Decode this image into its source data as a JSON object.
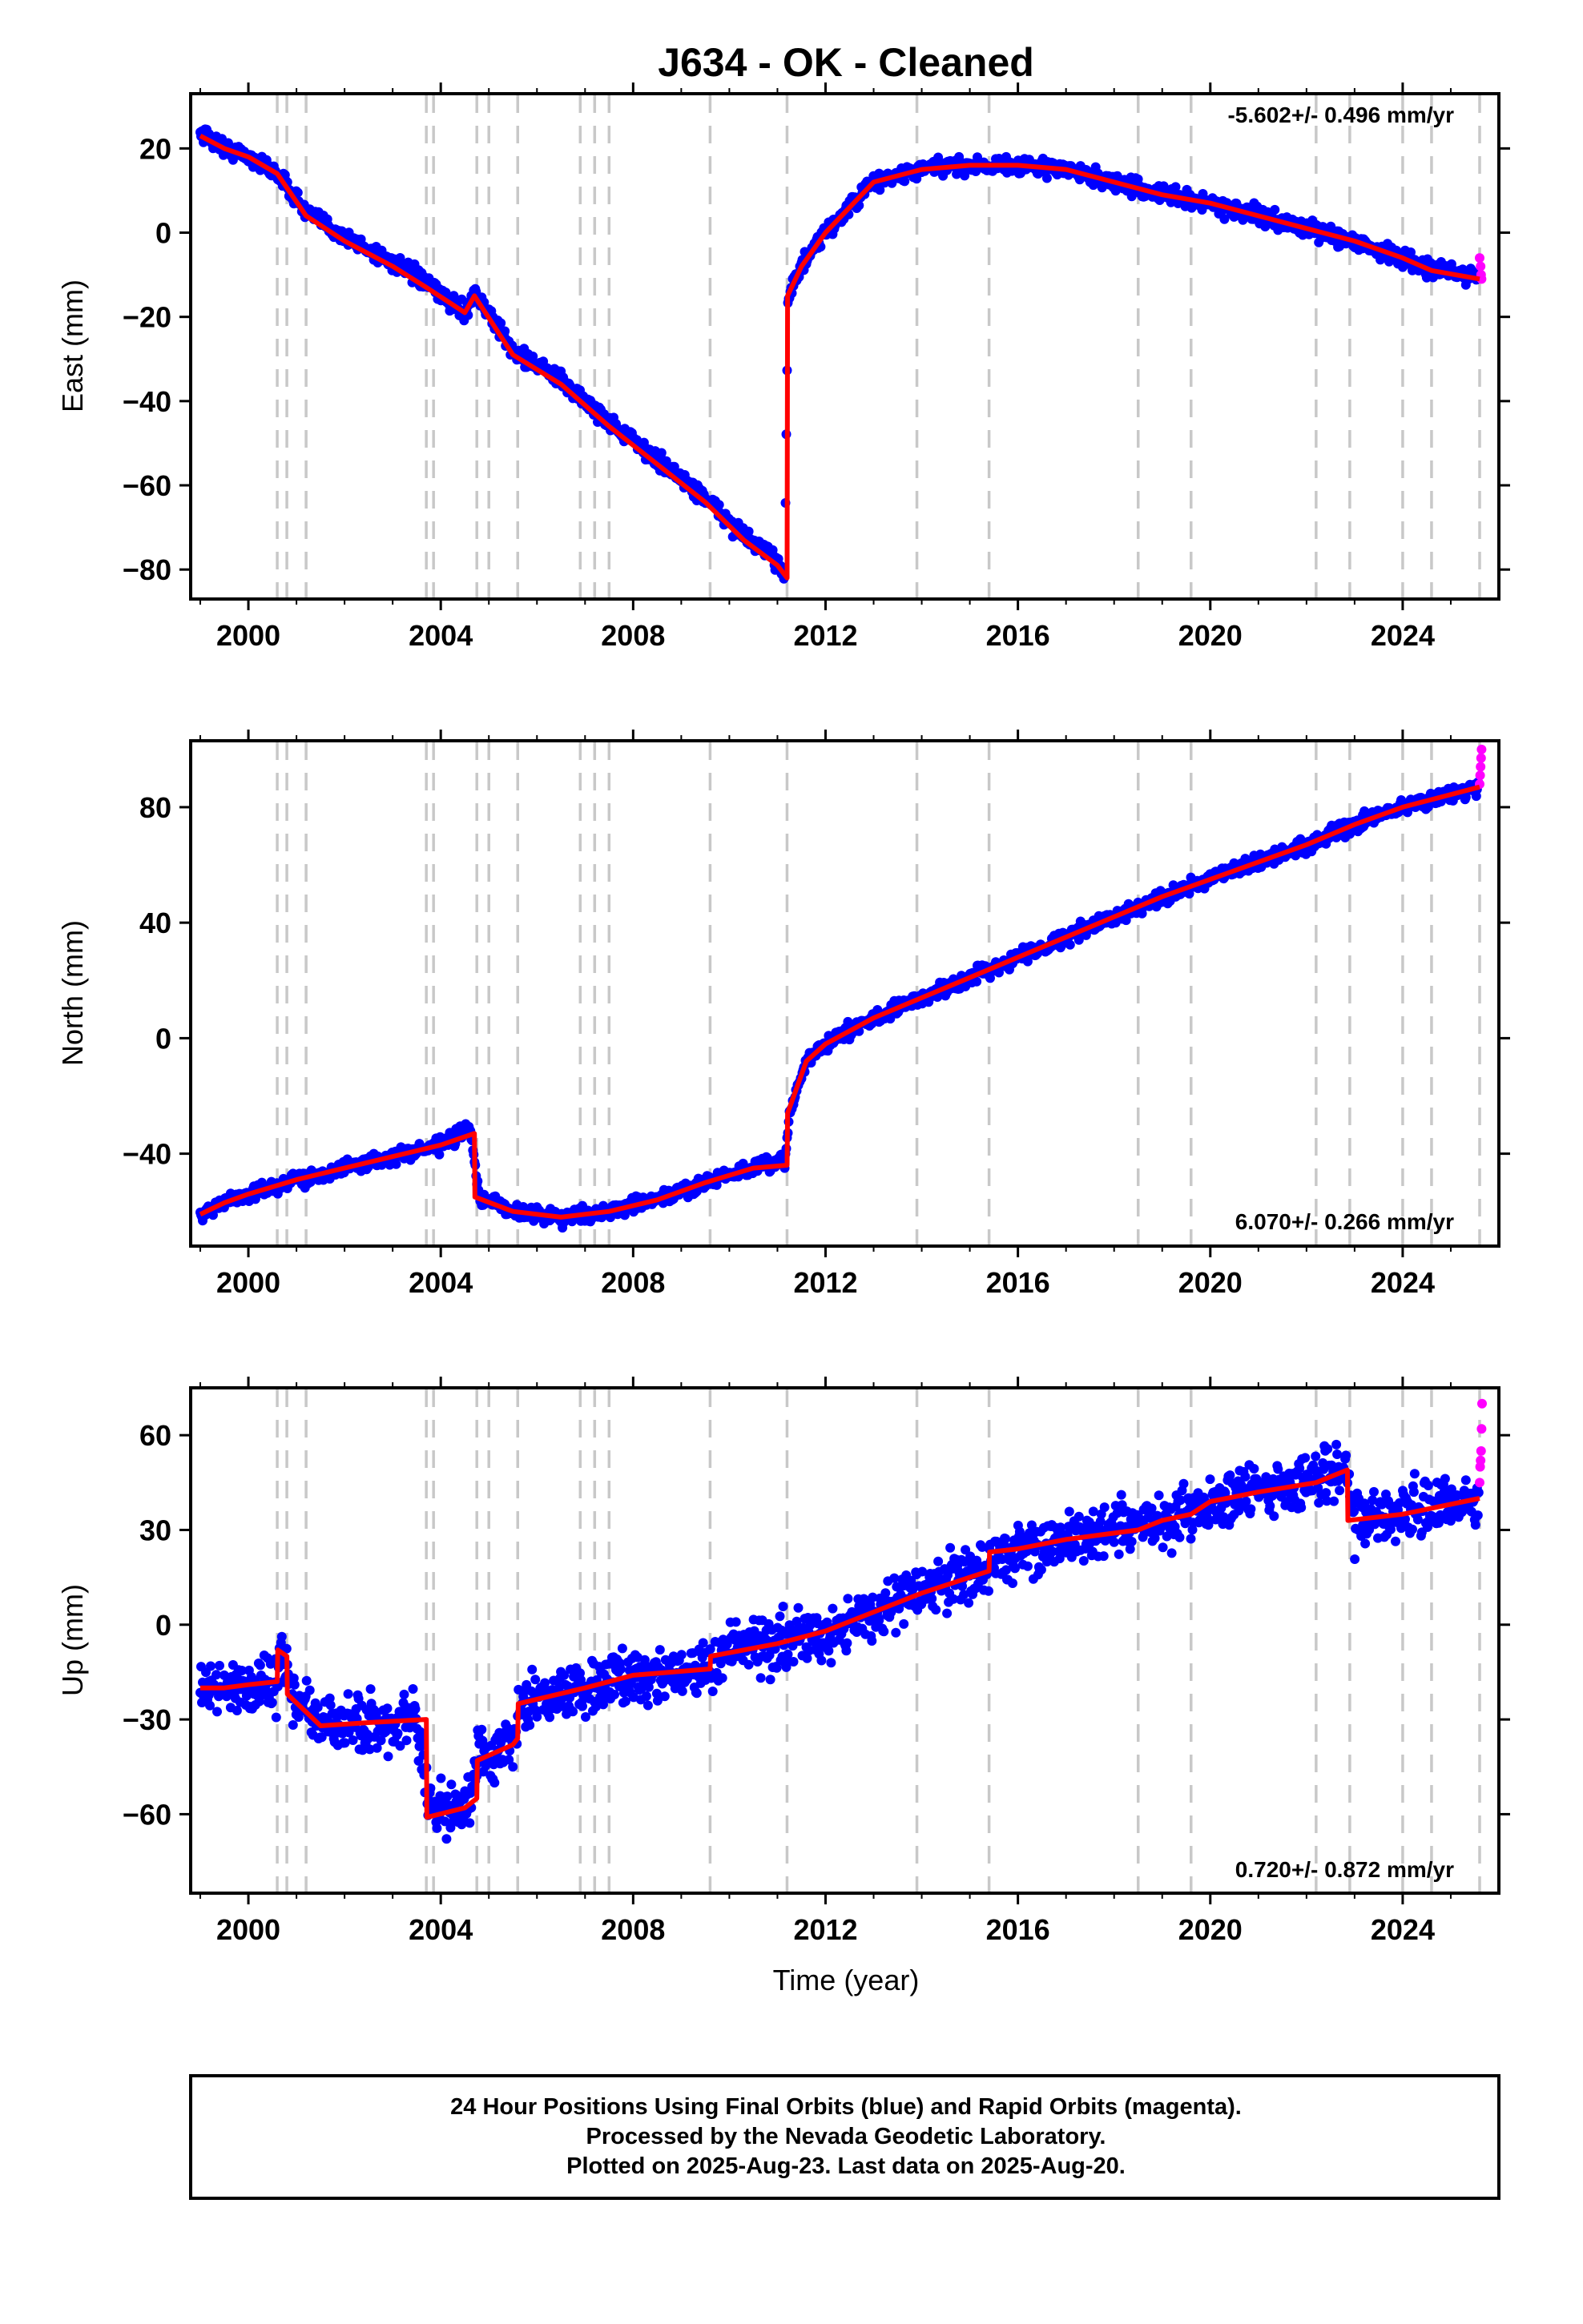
{
  "title": "J634  - OK - Cleaned",
  "xlabel": "Time (year)",
  "colors": {
    "final": "#0000ff",
    "rapid": "#ff00ff",
    "model": "#ff0000",
    "steps": "#c8c8c8",
    "frame": "#000000"
  },
  "footer": {
    "line1": "24 Hour Positions Using Final Orbits (blue) and Rapid Orbits (magenta).",
    "line2": "Processed by the Nevada Geodetic Laboratory.",
    "line3": "Plotted on 2025-Aug-23. Last data on 2025-Aug-20."
  },
  "chart_data": [
    {
      "type": "scatter",
      "component": "east",
      "ylabel": "East (mm)",
      "rate_text": "-5.602+/- 0.496 mm/yr",
      "xlim": [
        1998.8,
        2026.0
      ],
      "ylim": [
        -87,
        33
      ],
      "x_ticks": [
        2000,
        2004,
        2008,
        2012,
        2016,
        2020,
        2024
      ],
      "y_ticks": [
        -80,
        -60,
        -40,
        -20,
        0,
        20
      ],
      "step_epochs": [
        2000.6,
        2000.8,
        2001.2,
        2003.7,
        2003.85,
        2004.75,
        2005.0,
        2005.6,
        2006.9,
        2007.2,
        2007.5,
        2009.6,
        2011.2,
        2013.9,
        2015.4,
        2018.5,
        2019.6,
        2022.2,
        2022.9,
        2024.0,
        2024.6,
        2025.6
      ],
      "series": [
        {
          "name": "Final Orbits",
          "x": [
            1999.0,
            1999.5,
            2000.0,
            2000.6,
            2001.2,
            2002.0,
            2003.0,
            2003.7,
            2004.5,
            2004.7,
            2005.5,
            2006.5,
            2007.5,
            2008.5,
            2009.5,
            2010.3,
            2011.0,
            2011.15,
            2011.22,
            2011.5,
            2012.0,
            2012.5,
            2013.0,
            2014.0,
            2015.0,
            2016.0,
            2017.0,
            2018.0,
            2019.0,
            2020.0,
            2021.0,
            2022.0,
            2023.0,
            2024.0,
            2024.6,
            2025.58
          ],
          "y": [
            24,
            20,
            18,
            14,
            5,
            -1,
            -7,
            -12,
            -19,
            -14,
            -28,
            -35,
            -45,
            -54,
            -63,
            -72,
            -78,
            -81,
            -15,
            -8,
            0,
            6,
            12,
            15,
            16,
            16,
            15,
            12,
            9,
            7,
            4,
            1,
            -2,
            -6,
            -9,
            -10
          ]
        },
        {
          "name": "Rapid Orbits",
          "x": [
            2025.6,
            2025.62,
            2025.63,
            2025.64
          ],
          "y": [
            -6,
            -8,
            -10,
            -11
          ]
        },
        {
          "name": "Model",
          "x": [
            1999.0,
            1999.5,
            2000.0,
            2000.6,
            2001.2,
            2002.0,
            2003.0,
            2003.7,
            2004.5,
            2004.7,
            2005.5,
            2006.5,
            2007.5,
            2008.5,
            2009.5,
            2010.3,
            2011.0,
            2011.2,
            2011.21,
            2011.5,
            2012.0,
            2012.5,
            2013.0,
            2014.0,
            2015.0,
            2016.0,
            2017.0,
            2018.0,
            2019.0,
            2020.0,
            2021.0,
            2022.0,
            2023.0,
            2024.0,
            2024.6,
            2025.6
          ],
          "y": [
            23,
            20,
            18,
            14,
            4,
            -2,
            -8,
            -13,
            -19,
            -15,
            -29,
            -36,
            -46,
            -55,
            -64,
            -73,
            -79,
            -82,
            -15,
            -8,
            0,
            6,
            12,
            15,
            16,
            16,
            15,
            12,
            9,
            7,
            4,
            1,
            -2,
            -6,
            -9,
            -11
          ]
        }
      ]
    },
    {
      "type": "scatter",
      "component": "north",
      "ylabel": "North (mm)",
      "rate_text": "6.070+/- 0.266 mm/yr",
      "xlim": [
        1998.8,
        2026.0
      ],
      "ylim": [
        -72,
        103
      ],
      "x_ticks": [
        2000,
        2004,
        2008,
        2012,
        2016,
        2020,
        2024
      ],
      "y_ticks": [
        -40,
        0,
        40,
        80
      ],
      "step_epochs": [
        2000.6,
        2000.8,
        2001.2,
        2003.7,
        2003.85,
        2004.75,
        2005.0,
        2005.6,
        2006.9,
        2007.2,
        2007.5,
        2009.6,
        2011.2,
        2013.9,
        2015.4,
        2018.5,
        2019.6,
        2022.2,
        2022.9,
        2024.0,
        2024.6,
        2025.6
      ],
      "series": [
        {
          "name": "Final Orbits",
          "x": [
            1999.0,
            1999.5,
            2000.0,
            2001.0,
            2002.0,
            2003.0,
            2004.0,
            2004.6,
            2004.8,
            2005.5,
            2006.5,
            2007.5,
            2008.5,
            2009.5,
            2010.5,
            2011.15,
            2011.25,
            2011.6,
            2012.0,
            2013.0,
            2014.0,
            2015.0,
            2016.0,
            2017.0,
            2018.0,
            2019.0,
            2020.0,
            2021.0,
            2022.0,
            2023.0,
            2024.0,
            2025.58
          ],
          "y": [
            -61,
            -57,
            -54,
            -49,
            -45,
            -41,
            -37,
            -31,
            -55,
            -60,
            -62,
            -60,
            -56,
            -50,
            -45,
            -43,
            -26,
            -8,
            -2,
            7,
            14,
            21,
            28,
            35,
            42,
            49,
            55,
            61,
            67,
            74,
            80,
            87
          ]
        },
        {
          "name": "Rapid Orbits",
          "x": [
            2025.6,
            2025.61,
            2025.62,
            2025.63,
            2025.64
          ],
          "y": [
            88,
            91,
            94,
            97,
            100
          ]
        },
        {
          "name": "Model",
          "x": [
            1999.0,
            1999.5,
            2000.0,
            2001.0,
            2002.0,
            2003.0,
            2004.0,
            2004.7,
            2004.71,
            2005.5,
            2006.5,
            2007.5,
            2008.5,
            2009.5,
            2010.5,
            2011.2,
            2011.21,
            2011.6,
            2012.0,
            2013.0,
            2014.0,
            2015.0,
            2016.0,
            2017.0,
            2018.0,
            2019.0,
            2020.0,
            2021.0,
            2022.0,
            2023.0,
            2024.0,
            2025.6
          ],
          "y": [
            -61,
            -57,
            -54,
            -49,
            -45,
            -41,
            -37,
            -33,
            -55,
            -60,
            -62,
            -60,
            -56,
            -50,
            -45,
            -44,
            -26,
            -8,
            -2,
            7,
            14,
            21,
            28,
            35,
            42,
            49,
            55,
            61,
            67,
            74,
            80,
            87
          ]
        }
      ]
    },
    {
      "type": "scatter",
      "component": "up",
      "ylabel": "Up (mm)",
      "rate_text": "0.720+/- 0.872 mm/yr",
      "xlim": [
        1998.8,
        2026.0
      ],
      "ylim": [
        -85,
        75
      ],
      "x_ticks": [
        2000,
        2004,
        2008,
        2012,
        2016,
        2020,
        2024
      ],
      "y_ticks": [
        -60,
        -30,
        0,
        30,
        60
      ],
      "step_epochs": [
        2000.6,
        2000.8,
        2001.2,
        2003.7,
        2003.85,
        2004.75,
        2005.0,
        2005.6,
        2006.9,
        2007.2,
        2007.5,
        2009.6,
        2011.2,
        2013.9,
        2015.4,
        2018.5,
        2019.6,
        2022.2,
        2022.9,
        2024.0,
        2024.6,
        2025.6
      ],
      "series": [
        {
          "name": "Final Orbits",
          "x": [
            1999.0,
            1999.5,
            2000.0,
            2000.6,
            2000.7,
            2000.9,
            2001.5,
            2002.5,
            2003.5,
            2003.8,
            2004.5,
            2004.8,
            2005.5,
            2005.7,
            2007.0,
            2008.0,
            2009.5,
            2010.0,
            2011.0,
            2012.0,
            2013.0,
            2014.0,
            2015.0,
            2016.0,
            2017.0,
            2018.0,
            2019.0,
            2020.0,
            2021.0,
            2022.0,
            2022.85,
            2023.0,
            2024.0,
            2025.58
          ],
          "y": [
            -19,
            -20,
            -19,
            -18,
            -8,
            -22,
            -32,
            -31,
            -32,
            -60,
            -58,
            -43,
            -38,
            -25,
            -20,
            -16,
            -14,
            -8,
            -6,
            -2,
            4,
            10,
            17,
            23,
            27,
            29,
            33,
            39,
            42,
            45,
            51,
            33,
            35,
            40
          ]
        },
        {
          "name": "Rapid Orbits",
          "x": [
            2025.6,
            2025.61,
            2025.62,
            2025.63,
            2025.64,
            2025.65
          ],
          "y": [
            45,
            50,
            52,
            55,
            62,
            70
          ]
        },
        {
          "name": "Model",
          "x": [
            1999.0,
            1999.5,
            2000.0,
            2000.6,
            2000.61,
            2000.8,
            2000.81,
            2001.5,
            2002.5,
            2003.7,
            2003.71,
            2004.5,
            2004.75,
            2004.76,
            2005.5,
            2005.6,
            2005.61,
            2007.0,
            2008.0,
            2009.6,
            2009.61,
            2011.0,
            2012.0,
            2013.0,
            2014.0,
            2015.4,
            2015.41,
            2016.0,
            2017.0,
            2018.0,
            2018.5,
            2019.0,
            2019.6,
            2020.0,
            2021.0,
            2022.2,
            2022.85,
            2022.86,
            2024.0,
            2025.6
          ],
          "y": [
            -20,
            -20,
            -19,
            -18,
            -8,
            -10,
            -22,
            -32,
            -31,
            -30,
            -61,
            -58,
            -55,
            -43,
            -38,
            -36,
            -25,
            -20,
            -16,
            -14,
            -10,
            -6,
            -2,
            4,
            10,
            17,
            23,
            24,
            27,
            29,
            30,
            33,
            35,
            39,
            42,
            45,
            49,
            33,
            35,
            40
          ]
        }
      ]
    }
  ]
}
